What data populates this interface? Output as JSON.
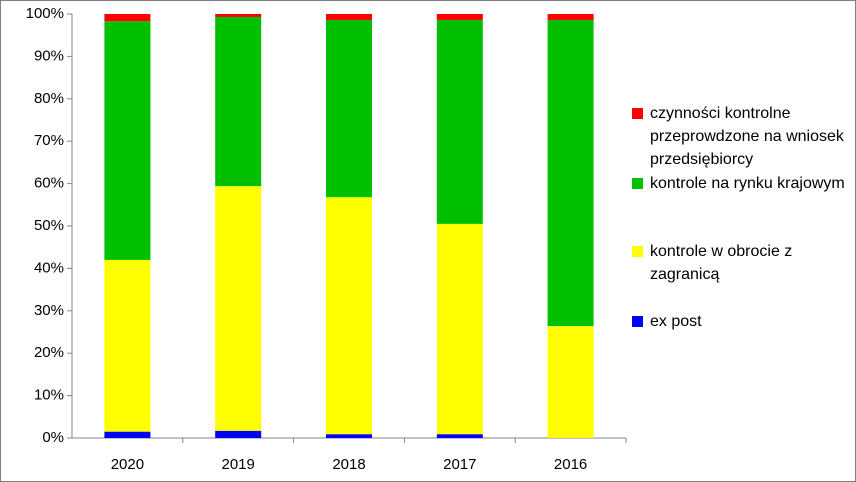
{
  "chart_data": {
    "type": "stacked_bar",
    "categories": [
      "2020",
      "2019",
      "2018",
      "2017",
      "2016"
    ],
    "series": [
      {
        "name": "ex post",
        "color": "#0000ff",
        "values": [
          1.5,
          1.7,
          0.9,
          0.9,
          0
        ]
      },
      {
        "name": "kontrole w obrocie z zagranicą",
        "color": "#ffff00",
        "values": [
          40.5,
          57.7,
          55.9,
          49.6,
          26.4
        ]
      },
      {
        "name": "kontrole na rynku krajowym",
        "color": "#00c000",
        "values": [
          56.3,
          39.9,
          41.8,
          48.1,
          72.2
        ]
      },
      {
        "name": "czynności kontrolne przeprowdzone na wniosek przedsiębiorcy",
        "color": "#ff0000",
        "values": [
          1.7,
          0.7,
          1.4,
          1.4,
          1.4
        ]
      }
    ],
    "ylim": [
      0,
      100
    ],
    "yticks": [
      {
        "value": 0,
        "label": "0%"
      },
      {
        "value": 10,
        "label": "10%"
      },
      {
        "value": 20,
        "label": "20%"
      },
      {
        "value": 30,
        "label": "30%"
      },
      {
        "value": 40,
        "label": "40%"
      },
      {
        "value": 50,
        "label": "50%"
      },
      {
        "value": 60,
        "label": "60%"
      },
      {
        "value": 70,
        "label": "70%"
      },
      {
        "value": 80,
        "label": "80%"
      },
      {
        "value": 90,
        "label": "90%"
      },
      {
        "value": 100,
        "label": "100%"
      }
    ]
  }
}
